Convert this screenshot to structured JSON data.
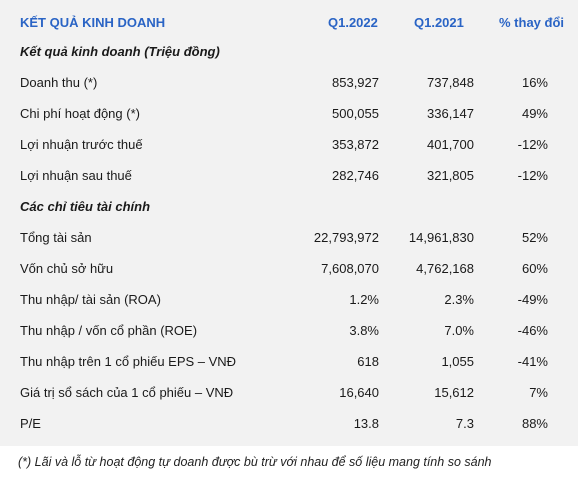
{
  "header": {
    "title": "KẾT QUẢ KINH DOANH",
    "col1": "Q1.2022",
    "col2": "Q1.2021",
    "col3": "% thay đổi"
  },
  "section1": {
    "title": "Kết quả kinh doanh (Triệu đồng)",
    "rows": [
      {
        "label": "Doanh thu (*)",
        "q2022": "853,927",
        "q2021": "737,848",
        "change": "16%"
      },
      {
        "label": "Chi phí hoạt động (*)",
        "q2022": "500,055",
        "q2021": "336,147",
        "change": "49%"
      },
      {
        "label": "Lợi nhuận trước thuế",
        "q2022": "353,872",
        "q2021": "401,700",
        "change": "-12%"
      },
      {
        "label": "Lợi nhuận sau thuế",
        "q2022": "282,746",
        "q2021": "321,805",
        "change": "-12%"
      }
    ]
  },
  "section2": {
    "title": "Các chỉ tiêu tài chính",
    "rows": [
      {
        "label": "Tổng tài sản",
        "q2022": "22,793,972",
        "q2021": "14,961,830",
        "change": "52%"
      },
      {
        "label": "Vốn chủ sở hữu",
        "q2022": "7,608,070",
        "q2021": "4,762,168",
        "change": "60%"
      },
      {
        "label": "Thu nhập/ tài sản (ROA)",
        "q2022": "1.2%",
        "q2021": "2.3%",
        "change": "-49%"
      },
      {
        "label": "Thu nhập / vốn cổ phần (ROE)",
        "q2022": "3.8%",
        "q2021": "7.0%",
        "change": "-46%"
      },
      {
        "label": "Thu nhập trên 1 cổ phiếu EPS – VNĐ",
        "q2022": "618",
        "q2021": "1,055",
        "change": "-41%"
      },
      {
        "label": "Giá trị sổ sách của 1 cổ phiếu – VNĐ",
        "q2022": "16,640",
        "q2021": "15,612",
        "change": "7%"
      },
      {
        "label": "P/E",
        "q2022": "13.8",
        "q2021": "7.3",
        "change": "88%"
      }
    ]
  },
  "footnote": "(*) Lãi và lỗ từ hoạt động tự doanh được bù trừ với nhau để số liệu mang tính so sánh"
}
